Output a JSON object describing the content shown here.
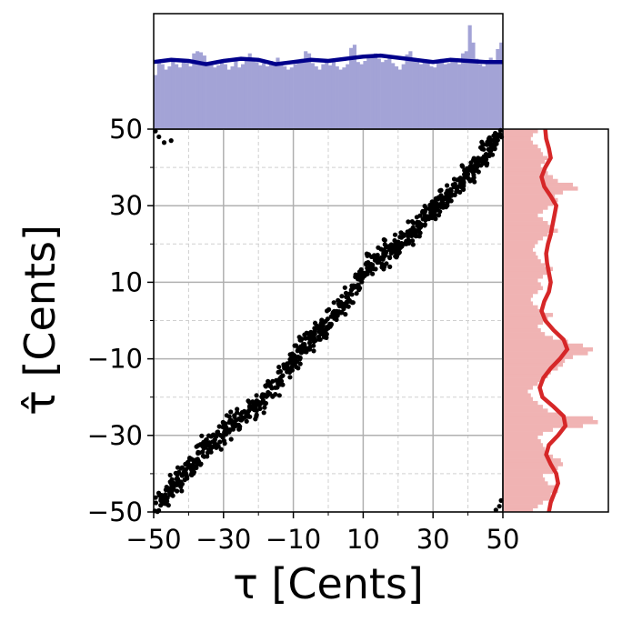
{
  "chart_data": {
    "type": "scatter",
    "title": "",
    "xlabel": "τ [Cents]",
    "ylabel": "τ̂ [Cents]",
    "xlim": [
      -50,
      50
    ],
    "ylim": [
      -50,
      50
    ],
    "xticks": [
      -50,
      -30,
      -10,
      10,
      30,
      50
    ],
    "xtick_labels": [
      "−50",
      "−30",
      "−10",
      "10",
      "30",
      "50"
    ],
    "yticks": [
      -50,
      -30,
      -10,
      10,
      30,
      50
    ],
    "ytick_labels": [
      "−50",
      "−30",
      "−10",
      "10",
      "30",
      "50"
    ],
    "grid": true,
    "colors": {
      "scatter": "#000000",
      "x_hist": "#a3a3d6",
      "x_kde": "#00008b",
      "y_hist": "#f0b3b3",
      "y_kde": "#d62728",
      "grid_major": "#b0b0b0",
      "grid_minor": "#d0d0d0"
    },
    "scatter_trend": {
      "description_points": [
        [
          -50,
          -50
        ],
        [
          -45,
          -44
        ],
        [
          -40,
          -38
        ],
        [
          -35,
          -33
        ],
        [
          -30,
          -29
        ],
        [
          -25,
          -26
        ],
        [
          -20,
          -22
        ],
        [
          -15,
          -17
        ],
        [
          -10,
          -10
        ],
        [
          -5,
          -5
        ],
        [
          0,
          0
        ],
        [
          5,
          5
        ],
        [
          10,
          12
        ],
        [
          15,
          17
        ],
        [
          20,
          19
        ],
        [
          25,
          24
        ],
        [
          30,
          29
        ],
        [
          35,
          33
        ],
        [
          40,
          38
        ],
        [
          45,
          44
        ],
        [
          50,
          50
        ]
      ],
      "wrap_points": [
        [
          -49.5,
          49.5
        ],
        [
          -48.5,
          48
        ],
        [
          -47,
          46.5
        ],
        [
          -45,
          47
        ],
        [
          48,
          -49.5
        ],
        [
          49,
          -48.5
        ],
        [
          49.5,
          -47
        ]
      ]
    },
    "x_histogram": {
      "bins_start": -50,
      "bin_width": 1,
      "counts": [
        0.5,
        0.62,
        0.6,
        0.55,
        0.58,
        0.63,
        0.6,
        0.57,
        0.64,
        0.61,
        0.58,
        0.7,
        0.72,
        0.71,
        0.68,
        0.62,
        0.6,
        0.57,
        0.59,
        0.61,
        0.6,
        0.55,
        0.58,
        0.63,
        0.57,
        0.6,
        0.66,
        0.7,
        0.64,
        0.62,
        0.59,
        0.61,
        0.58,
        0.63,
        0.6,
        0.66,
        0.62,
        0.58,
        0.55,
        0.57,
        0.6,
        0.62,
        0.65,
        0.72,
        0.7,
        0.61,
        0.58,
        0.55,
        0.6,
        0.63,
        0.59,
        0.64,
        0.58,
        0.55,
        0.57,
        0.6,
        0.75,
        0.78,
        0.62,
        0.6,
        0.63,
        0.66,
        0.68,
        0.7,
        0.65,
        0.62,
        0.64,
        0.67,
        0.61,
        0.58,
        0.55,
        0.6,
        0.69,
        0.72,
        0.66,
        0.62,
        0.6,
        0.64,
        0.63,
        0.58,
        0.57,
        0.62,
        0.65,
        0.6,
        0.61,
        0.64,
        0.63,
        0.6,
        0.7,
        0.72,
        0.96,
        0.8,
        0.65,
        0.6,
        0.58,
        0.63,
        0.66,
        0.62,
        0.74,
        0.8
      ],
      "count_max": 1.0
    },
    "x_kde": {
      "x": [
        -50,
        -45,
        -40,
        -35,
        -30,
        -25,
        -20,
        -15,
        -10,
        -5,
        0,
        5,
        10,
        15,
        20,
        25,
        30,
        35,
        40,
        45,
        50
      ],
      "y": [
        0.62,
        0.64,
        0.63,
        0.6,
        0.63,
        0.65,
        0.64,
        0.6,
        0.62,
        0.64,
        0.63,
        0.65,
        0.67,
        0.68,
        0.66,
        0.64,
        0.62,
        0.64,
        0.63,
        0.62,
        0.62
      ]
    },
    "y_histogram": {
      "bins_start": -50,
      "bin_width": 1,
      "counts": [
        0.3,
        0.35,
        0.4,
        0.5,
        0.48,
        0.55,
        0.52,
        0.45,
        0.42,
        0.4,
        0.5,
        0.55,
        0.6,
        0.58,
        0.5,
        0.45,
        0.42,
        0.4,
        0.38,
        0.35,
        0.4,
        0.5,
        0.8,
        0.95,
        0.9,
        0.6,
        0.45,
        0.4,
        0.35,
        0.3,
        0.28,
        0.25,
        0.3,
        0.35,
        0.4,
        0.45,
        0.48,
        0.55,
        0.6,
        0.62,
        0.7,
        0.85,
        0.9,
        0.8,
        0.65,
        0.5,
        0.42,
        0.38,
        0.35,
        0.4,
        0.45,
        0.5,
        0.4,
        0.35,
        0.3,
        0.28,
        0.3,
        0.35,
        0.4,
        0.38,
        0.35,
        0.4,
        0.45,
        0.5,
        0.42,
        0.38,
        0.35,
        0.33,
        0.3,
        0.32,
        0.35,
        0.4,
        0.45,
        0.55,
        0.5,
        0.45,
        0.4,
        0.35,
        0.4,
        0.45,
        0.5,
        0.55,
        0.52,
        0.6,
        0.75,
        0.7,
        0.55,
        0.5,
        0.45,
        0.4,
        0.38,
        0.42,
        0.45,
        0.4,
        0.38,
        0.35,
        0.3,
        0.28,
        0.3,
        0.35
      ],
      "count_max": 1.0
    },
    "y_kde": {
      "y": [
        -50,
        -47.5,
        -45,
        -42.5,
        -40,
        -37.5,
        -35,
        -32.5,
        -30,
        -27.5,
        -25,
        -22.5,
        -20,
        -17.5,
        -15,
        -12.5,
        -10,
        -7.5,
        -5,
        -2.5,
        0,
        2.5,
        5,
        7.5,
        10,
        12.5,
        15,
        17.5,
        20,
        22.5,
        25,
        27.5,
        30,
        32.5,
        35,
        37.5,
        40,
        42.5,
        45,
        47.5,
        50
      ],
      "x": [
        0.5,
        0.52,
        0.56,
        0.6,
        0.58,
        0.52,
        0.47,
        0.5,
        0.6,
        0.68,
        0.66,
        0.55,
        0.43,
        0.4,
        0.44,
        0.52,
        0.62,
        0.7,
        0.66,
        0.55,
        0.46,
        0.42,
        0.45,
        0.5,
        0.52,
        0.5,
        0.48,
        0.47,
        0.49,
        0.52,
        0.54,
        0.56,
        0.58,
        0.52,
        0.45,
        0.42,
        0.46,
        0.52,
        0.5,
        0.47,
        0.46
      ]
    }
  }
}
